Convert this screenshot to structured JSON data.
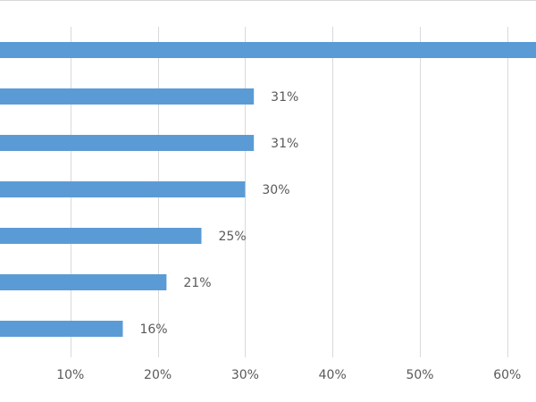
{
  "chart_data": {
    "type": "bar",
    "orientation": "horizontal",
    "series": [
      {
        "values": [
          64,
          31,
          31,
          30,
          25,
          21,
          16
        ],
        "data_labels": [
          "",
          "31%",
          "31%",
          "30%",
          "25%",
          "21%",
          "16%"
        ],
        "color": "#5b9bd5"
      }
    ],
    "x_ticks": [
      "10%",
      "20%",
      "30%",
      "40%",
      "50%",
      "60%"
    ],
    "x_tick_values": [
      10,
      20,
      30,
      40,
      50,
      60
    ],
    "xlim": [
      0,
      63
    ],
    "grid": true,
    "legend": "none",
    "colors": {
      "bar": "#5b9bd5",
      "grid": "#d9d9d9",
      "text": "#595959",
      "background": "#ffffff"
    }
  }
}
